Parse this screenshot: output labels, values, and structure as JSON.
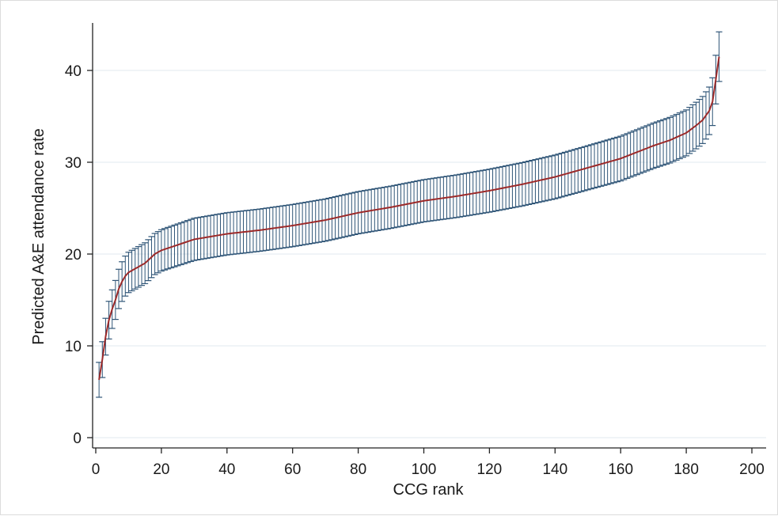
{
  "chart_data": {
    "type": "line",
    "title": "",
    "xlabel": "CCG rank",
    "ylabel": "Predicted A&E attendance rate",
    "xlim": [
      0,
      200
    ],
    "ylim": [
      0,
      45
    ],
    "xticks": [
      "0",
      "20",
      "40",
      "60",
      "80",
      "100",
      "120",
      "140",
      "160",
      "180",
      "200"
    ],
    "yticks": [
      "0",
      "10",
      "20",
      "30",
      "40"
    ],
    "grid": true,
    "legend": "none",
    "colors": {
      "line": "#9c2a2a",
      "error_bars": "#2f5577",
      "grid": "#e8eef2",
      "axis": "#222222"
    },
    "series": [
      {
        "n_points": 190,
        "rank_start": 1,
        "rank_end": 190,
        "predicted_rate_points": [
          [
            1,
            6.3
          ],
          [
            2,
            8.5
          ],
          [
            3,
            11.0
          ],
          [
            4,
            12.8
          ],
          [
            5,
            14.0
          ],
          [
            6,
            15.0
          ],
          [
            7,
            16.2
          ],
          [
            8,
            17.0
          ],
          [
            9,
            17.6
          ],
          [
            10,
            18.0
          ],
          [
            12,
            18.4
          ],
          [
            15,
            19.0
          ],
          [
            18,
            20.0
          ],
          [
            20,
            20.4
          ],
          [
            25,
            21.0
          ],
          [
            30,
            21.6
          ],
          [
            40,
            22.2
          ],
          [
            50,
            22.6
          ],
          [
            60,
            23.1
          ],
          [
            70,
            23.7
          ],
          [
            80,
            24.5
          ],
          [
            90,
            25.1
          ],
          [
            100,
            25.8
          ],
          [
            110,
            26.3
          ],
          [
            120,
            26.9
          ],
          [
            130,
            27.6
          ],
          [
            140,
            28.4
          ],
          [
            150,
            29.4
          ],
          [
            160,
            30.4
          ],
          [
            170,
            31.8
          ],
          [
            175,
            32.4
          ],
          [
            180,
            33.2
          ],
          [
            183,
            34.0
          ],
          [
            185,
            34.6
          ],
          [
            187,
            35.6
          ],
          [
            188,
            36.6
          ],
          [
            189,
            39.0
          ],
          [
            190,
            41.5
          ]
        ],
        "ci_half_width_points": [
          [
            1,
            1.9
          ],
          [
            5,
            2.1
          ],
          [
            10,
            2.2
          ],
          [
            30,
            2.3
          ],
          [
            100,
            2.3
          ],
          [
            150,
            2.4
          ],
          [
            180,
            2.5
          ],
          [
            188,
            2.6
          ],
          [
            190,
            2.7
          ]
        ]
      }
    ]
  }
}
